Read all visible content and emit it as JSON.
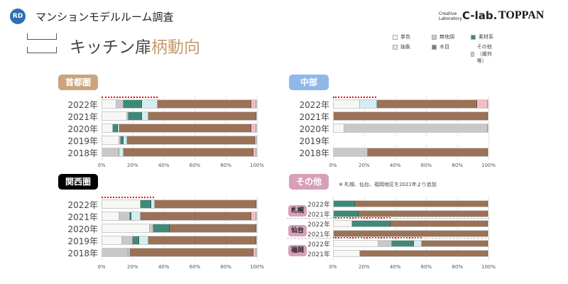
{
  "header": {
    "logo": "RD",
    "title": "マンションモデルルーム調査",
    "subtitle_a": "キッチン扉",
    "subtitle_b": "柄動向",
    "brand_small": "Creative Laboratory",
    "brand_clab": "C-lab.",
    "brand_toppan": "TOPPAN"
  },
  "legend": [
    {
      "label": "単色",
      "color": "#f7f7f5"
    },
    {
      "label": "無地調",
      "color": "#c8c8c8"
    },
    {
      "label": "素材系",
      "color": "#3d8a78"
    },
    {
      "label": "抽象",
      "color": "#d4ecf2"
    },
    {
      "label": "木目",
      "color": "#9b7256"
    },
    {
      "label": "その他（幾何等）",
      "color": "#f6bcc6"
    }
  ],
  "chart_data": [
    {
      "type": "bar",
      "orientation": "horizontal-stacked-100",
      "title": "首都圏",
      "tag_color": "#c9a47c",
      "xlim": [
        0,
        100
      ],
      "xticks": [
        "0%",
        "20%",
        "40%",
        "60%",
        "80%",
        "100%"
      ],
      "rows": [
        {
          "label": "2022年",
          "values": [
            9,
            5,
            12,
            10,
            61,
            3
          ]
        },
        {
          "label": "2021年",
          "values": [
            16,
            1,
            9,
            4,
            70,
            0
          ]
        },
        {
          "label": "2020年",
          "values": [
            7,
            0,
            3,
            1,
            86,
            3
          ]
        },
        {
          "label": "2019年",
          "values": [
            11,
            1,
            2,
            2,
            83,
            1
          ]
        },
        {
          "label": "2018年",
          "values": [
            0,
            11,
            0,
            3,
            84,
            2
          ]
        }
      ]
    },
    {
      "type": "bar",
      "orientation": "horizontal-stacked-100",
      "title": "中部",
      "tag_color": "#8fb8ea",
      "xlim": [
        0,
        100
      ],
      "xticks": [
        "0%",
        "20%",
        "40%",
        "60%",
        "80%",
        "100%"
      ],
      "rows": [
        {
          "label": "2022年",
          "values": [
            17,
            0,
            0,
            11,
            65,
            7
          ]
        },
        {
          "label": "2021年",
          "values": [
            0,
            0,
            0,
            0,
            100,
            0
          ]
        },
        {
          "label": "2020年",
          "values": [
            7,
            93,
            0,
            0,
            0,
            0
          ]
        },
        {
          "label": "2019年",
          "values": [
            0,
            0,
            0,
            0,
            0,
            0
          ]
        },
        {
          "label": "2018年",
          "values": [
            0,
            22,
            0,
            0,
            78,
            0
          ]
        }
      ]
    },
    {
      "type": "bar",
      "orientation": "horizontal-stacked-100",
      "title": "関西圏",
      "tag_color": "#000000",
      "xlim": [
        0,
        100
      ],
      "xticks": [
        "0%",
        "20%",
        "40%",
        "60%",
        "80%",
        "100%"
      ],
      "rows": [
        {
          "label": "2022年",
          "values": [
            25,
            0,
            7,
            2,
            66,
            0
          ]
        },
        {
          "label": "2021年",
          "values": [
            11,
            7,
            1,
            6,
            72,
            3
          ]
        },
        {
          "label": "2020年",
          "values": [
            31,
            2,
            11,
            0,
            56,
            0
          ]
        },
        {
          "label": "2019年",
          "values": [
            13,
            7,
            4,
            6,
            70,
            0
          ]
        },
        {
          "label": "2018年",
          "values": [
            0,
            17,
            0,
            1,
            80,
            2
          ]
        }
      ]
    },
    {
      "type": "bar",
      "orientation": "horizontal-stacked-100",
      "title": "その他",
      "tag_color": "#d8a0b8",
      "note": "※ 札幌、仙台、福岡地区を2021年より追加",
      "xlim": [
        0,
        100
      ],
      "xticks": [
        "0%",
        "20%",
        "40%",
        "60%",
        "80%",
        "100%"
      ],
      "cities": [
        "札幌",
        "仙台",
        "福岡"
      ],
      "rows": [
        {
          "city": "札幌",
          "label": "2022年",
          "values": [
            0,
            0,
            14,
            0,
            86,
            0
          ]
        },
        {
          "city": "札幌",
          "label": "2021年",
          "values": [
            0,
            0,
            16,
            0,
            84,
            0
          ]
        },
        {
          "city": "仙台",
          "label": "2022年",
          "values": [
            12,
            0,
            25,
            0,
            63,
            0
          ]
        },
        {
          "city": "仙台",
          "label": "2021年",
          "values": [
            0,
            0,
            0,
            0,
            100,
            0
          ]
        },
        {
          "city": "福岡",
          "label": "2022年",
          "values": [
            29,
            9,
            14,
            5,
            43,
            0
          ]
        },
        {
          "city": "福岡",
          "label": "2021年",
          "values": [
            17,
            0,
            0,
            0,
            83,
            0
          ]
        }
      ]
    }
  ]
}
